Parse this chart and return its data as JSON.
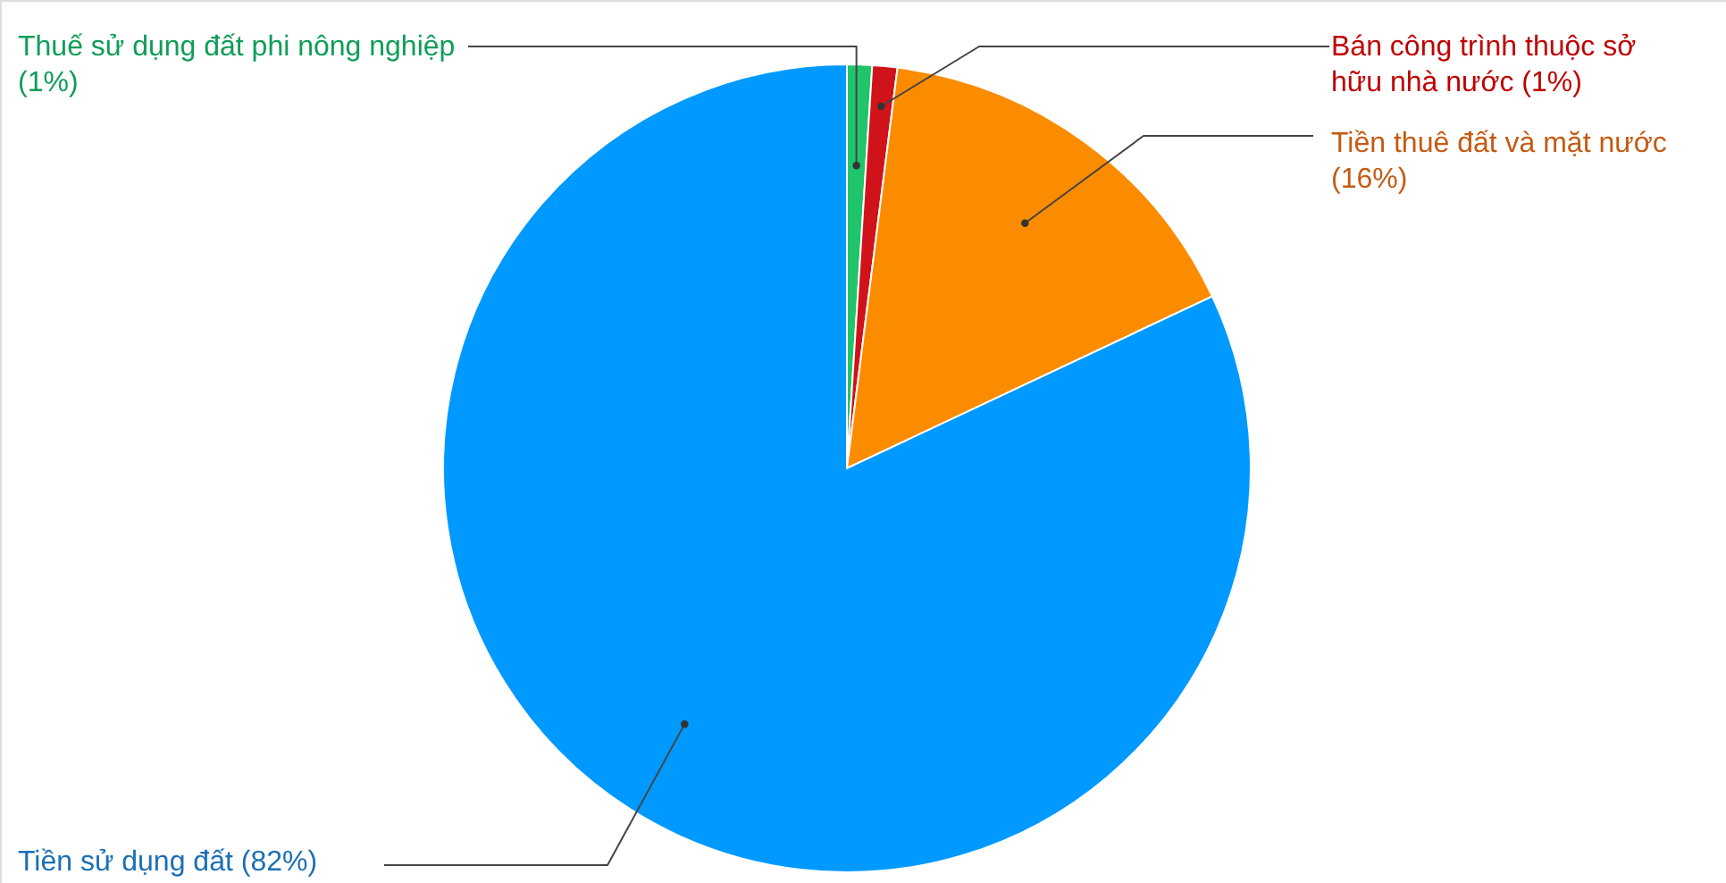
{
  "chart_data": {
    "type": "pie",
    "categories": [
      "Thuế sử dụng đất phi nông nghiệp",
      "Bán công trình thuộc sở hữu nhà nước",
      "Tiền thuê đất và mặt nước",
      "Tiền sử dụng đất"
    ],
    "values": [
      1,
      1,
      16,
      82
    ],
    "value_labels": [
      "(1%)",
      "(1%)",
      "(16%)",
      "(82%)"
    ],
    "colors": [
      "#1fc46b",
      "#d0121b",
      "#fb8c00",
      "#0099ff"
    ]
  }
}
